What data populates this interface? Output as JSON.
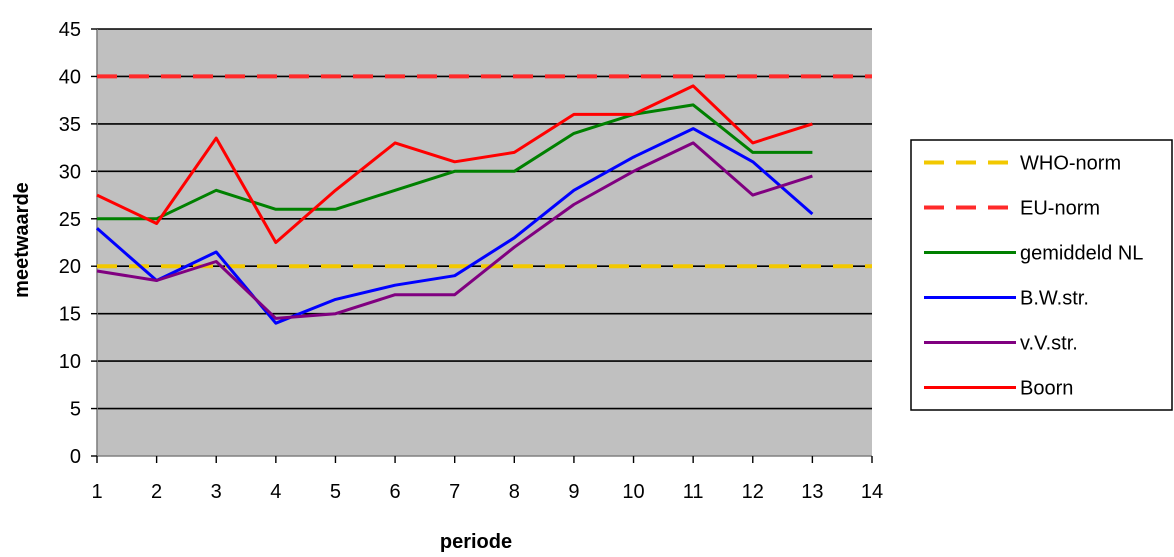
{
  "chart_data": {
    "type": "line",
    "xlabel": "periode",
    "ylabel": "meetwaarde",
    "xlim": [
      1,
      14
    ],
    "ylim": [
      0,
      45
    ],
    "x_ticks": [
      1,
      2,
      3,
      4,
      5,
      6,
      7,
      8,
      9,
      10,
      11,
      12,
      13,
      14
    ],
    "y_ticks": [
      0,
      5,
      10,
      15,
      20,
      25,
      30,
      35,
      40,
      45
    ],
    "grid": true,
    "plot_background": "#c0c0c0",
    "legend_position": "right",
    "series": [
      {
        "name": "WHO-norm",
        "color": "#f2c800",
        "dash": true,
        "x": [
          1,
          14
        ],
        "values": [
          20,
          20
        ]
      },
      {
        "name": "EU-norm",
        "color": "#ff2a2a",
        "dash": true,
        "x": [
          1,
          14
        ],
        "values": [
          40,
          40
        ]
      },
      {
        "name": "gemiddeld NL",
        "color": "#008000",
        "dash": false,
        "x": [
          1,
          2,
          3,
          4,
          5,
          6,
          7,
          8,
          9,
          10,
          11,
          12,
          13
        ],
        "values": [
          25,
          25,
          28,
          26,
          26,
          28,
          30,
          30,
          34,
          36,
          37,
          32,
          32
        ]
      },
      {
        "name": "B.W.str.",
        "color": "#0000ff",
        "dash": false,
        "x": [
          1,
          2,
          3,
          4,
          5,
          6,
          7,
          8,
          9,
          10,
          11,
          12,
          13
        ],
        "values": [
          24,
          18.5,
          21.5,
          14,
          16.5,
          18,
          19,
          23,
          28,
          31.5,
          34.5,
          31,
          25.5
        ]
      },
      {
        "name": "v.V.str.",
        "color": "#800080",
        "dash": false,
        "x": [
          1,
          2,
          3,
          4,
          5,
          6,
          7,
          8,
          9,
          10,
          11,
          12,
          13
        ],
        "values": [
          19.5,
          18.5,
          20.5,
          14.5,
          15,
          17,
          17,
          22,
          26.5,
          30,
          33,
          27.5,
          29.5
        ]
      },
      {
        "name": "Boorn",
        "color": "#ff0000",
        "dash": false,
        "x": [
          1,
          2,
          3,
          4,
          5,
          6,
          7,
          8,
          9,
          10,
          11,
          12,
          13
        ],
        "values": [
          27.5,
          24.5,
          33.5,
          22.5,
          28,
          33,
          31,
          32,
          36,
          36,
          39,
          33,
          35
        ]
      }
    ]
  }
}
